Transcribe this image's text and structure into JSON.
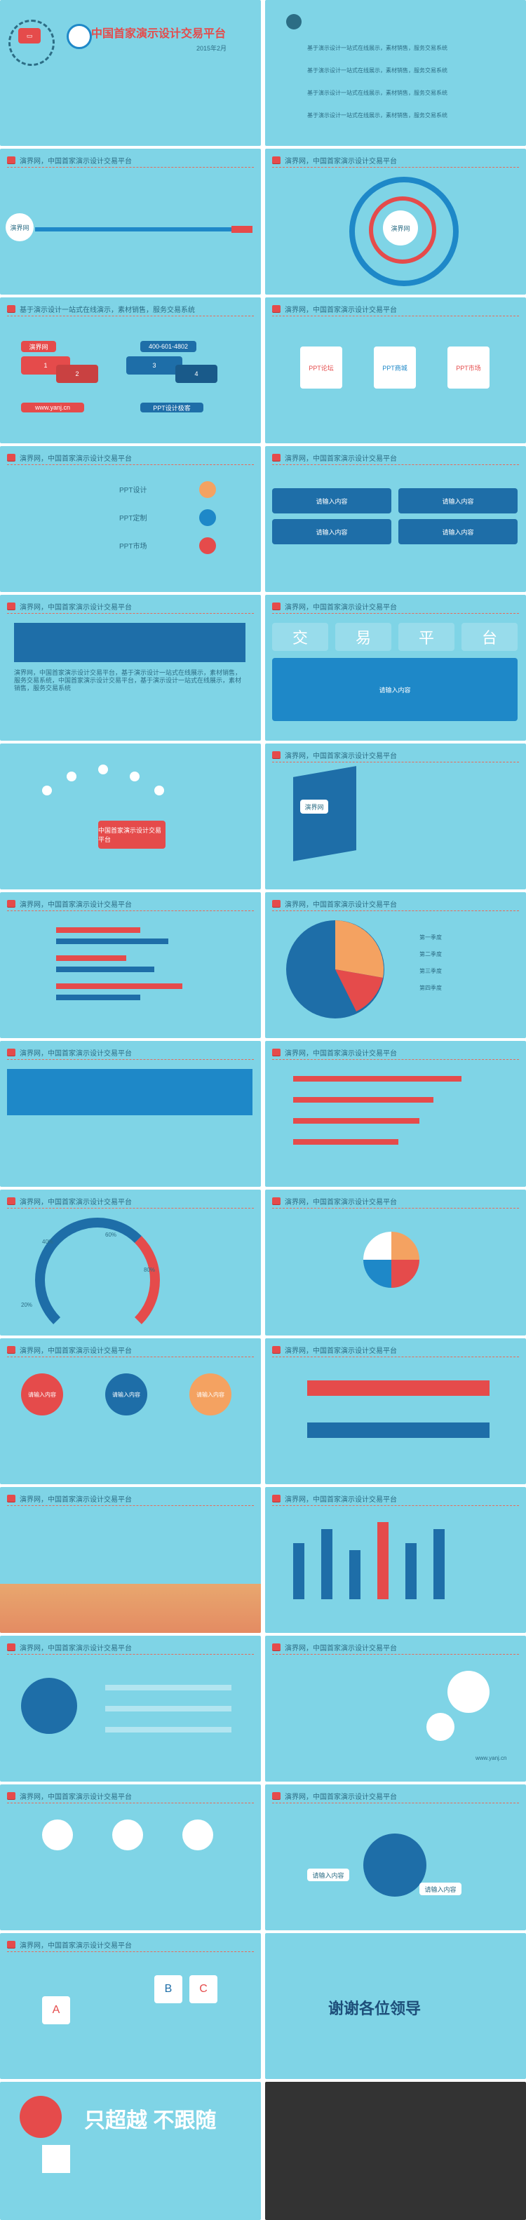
{
  "slides": {
    "s1": {
      "title": "中国首家演示设计交易平台",
      "date": "2015年2月"
    },
    "s2": {
      "items": [
        "基于演示设计一站式在线展示，素材销售，服务交易系统",
        "基于演示设计一站式在线展示，素材销售，服务交易系统",
        "基于演示设计一站式在线展示，素材销售，服务交易系统",
        "基于演示设计一站式在线展示，素材销售，服务交易系统"
      ]
    },
    "s3": {
      "header": "演界网，中国首家演示设计交易平台",
      "center": "演界网"
    },
    "s4": {
      "header": "演界网，中国首家演示设计交易平台",
      "center": "演界网"
    },
    "s5": {
      "header": "基于演示设计一站式在线演示，素材销售，服务交易系统",
      "n1": "1",
      "n2": "2",
      "n3": "3",
      "n4": "4",
      "brand": "演界网",
      "phone": "400-601-4802",
      "site": "www.yanj.cn",
      "tag": "PPT设计极客"
    },
    "s6": {
      "header": "演界网，中国首家演示设计交易平台",
      "c1": "PPT论坛",
      "c2": "PPT商城",
      "c3": "PPT市场"
    },
    "s7": {
      "header": "演界网，中国首家演示设计交易平台",
      "r1": "PPT设计",
      "r2": "PPT定制",
      "r3": "PPT市场"
    },
    "s8": {
      "header": "演界网，中国首家演示设计交易平台",
      "label": "请输入内容"
    },
    "s9": {
      "header": "演界网，中国首家演示设计交易平台",
      "quote": "演界网，中国首家演示设计交易平台，基于演示设计一站式在线展示，素材销售，服务交易系统，中国首家演示设计交易平台，基于演示设计一站式在线展示，素材销售，服务交易系统"
    },
    "s10": {
      "header": "演界网，中国首家演示设计交易平台",
      "w1": "交",
      "w2": "易",
      "w3": "平",
      "w4": "台",
      "label": "请输入内容"
    },
    "s11": {
      "center": "中国首家演示设计交易平台"
    },
    "s12": {
      "header": "演界网，中国首家演示设计交易平台",
      "center": "演界网"
    },
    "s13": {
      "header": "演界网，中国首家演示设计交易平台"
    },
    "s14": {
      "header": "演界网，中国首家演示设计交易平台",
      "l1": "第一季度",
      "l2": "第二季度",
      "l3": "第三季度",
      "l4": "第四季度"
    },
    "s15": {
      "header": "演界网，中国首家演示设计交易平台"
    },
    "s16": {
      "header": "演界网，中国首家演示设计交易平台"
    },
    "s17": {
      "header": "演界网，中国首家演示设计交易平台",
      "p1": "20%",
      "p2": "40%",
      "p3": "60%",
      "p4": "80%"
    },
    "s18": {
      "header": "演界网，中国首家演示设计交易平台"
    },
    "s19": {
      "header": "演界网，中国首家演示设计交易平台",
      "a": "请输入内容",
      "b": "请输入内容",
      "c": "请输入内容"
    },
    "s20": {
      "header": "演界网，中国首家演示设计交易平台"
    },
    "s21": {
      "header": "演界网，中国首家演示设计交易平台"
    },
    "s22": {
      "header": "演界网，中国首家演示设计交易平台"
    },
    "s23": {
      "header": "演界网，中国首家演示设计交易平台"
    },
    "s24": {
      "header": "演界网，中国首家演示设计交易平台",
      "site": "www.yanj.cn"
    },
    "s25": {
      "header": "演界网，中国首家演示设计交易平台"
    },
    "s26": {
      "header": "演界网，中国首家演示设计交易平台",
      "a": "请输入内容",
      "b": "请输入内容"
    },
    "s27": {
      "header": "演界网，中国首家演示设计交易平台",
      "A": "A",
      "B": "B",
      "C": "C"
    },
    "s28": {
      "thanks": "谢谢各位领导"
    },
    "s29": {
      "slogan": "只超越 不跟随"
    }
  },
  "colors": {
    "bg": "#7fd4e6",
    "red": "#e54b4b",
    "orange": "#f4a261",
    "blue": "#1e88c8",
    "dark": "#333333"
  }
}
